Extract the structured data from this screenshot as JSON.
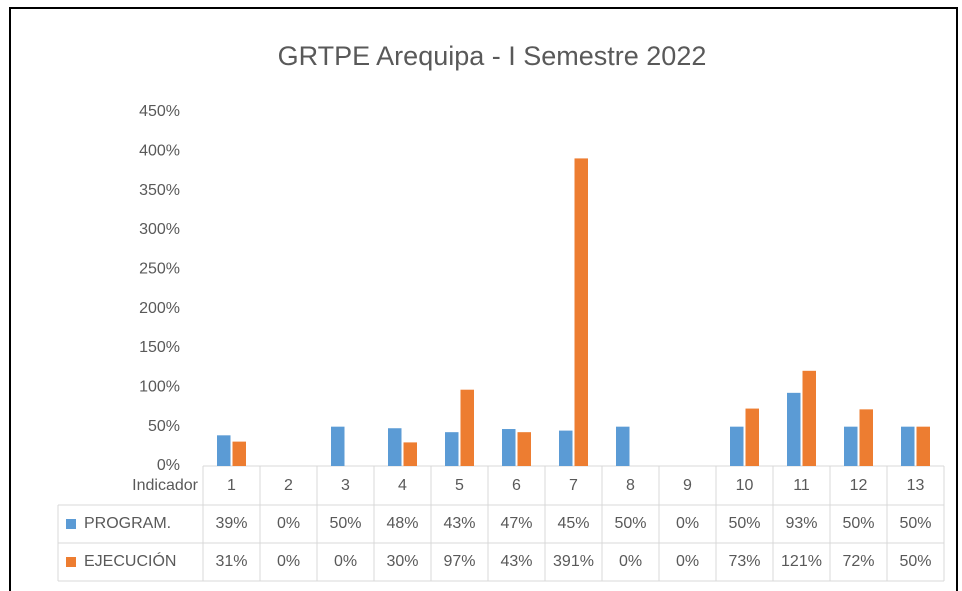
{
  "chart_data": {
    "type": "bar",
    "title": "GRTPE Arequipa - I Semestre 2022",
    "table_header": "Indicador",
    "categories": [
      "1",
      "2",
      "3",
      "4",
      "5",
      "6",
      "7",
      "8",
      "9",
      "10",
      "11",
      "12",
      "13"
    ],
    "series": [
      {
        "name": "PROGRAM.",
        "color": "#5b9bd5",
        "values": [
          39,
          0,
          50,
          48,
          43,
          47,
          45,
          50,
          0,
          50,
          93,
          50,
          50
        ],
        "value_labels": [
          "39%",
          "0%",
          "50%",
          "48%",
          "43%",
          "47%",
          "45%",
          "50%",
          "0%",
          "50%",
          "93%",
          "50%",
          "50%"
        ]
      },
      {
        "name": "EJECUCIÓN",
        "color": "#ed7d31",
        "values": [
          31,
          0,
          0,
          30,
          97,
          43,
          391,
          0,
          0,
          73,
          121,
          72,
          50
        ],
        "value_labels": [
          "31%",
          "0%",
          "0%",
          "30%",
          "97%",
          "43%",
          "391%",
          "0%",
          "0%",
          "73%",
          "121%",
          "72%",
          "50%"
        ]
      }
    ],
    "ylim": [
      0,
      450
    ],
    "yticks": [
      {
        "value": 0,
        "label": "0%"
      },
      {
        "value": 50,
        "label": "50%"
      },
      {
        "value": 100,
        "label": "100%"
      },
      {
        "value": 150,
        "label": "150%"
      },
      {
        "value": 200,
        "label": "200%"
      },
      {
        "value": 250,
        "label": "250%"
      },
      {
        "value": 300,
        "label": "300%"
      },
      {
        "value": 350,
        "label": "350%"
      },
      {
        "value": 400,
        "label": "400%"
      },
      {
        "value": 450,
        "label": "450%"
      }
    ],
    "grid": false
  }
}
